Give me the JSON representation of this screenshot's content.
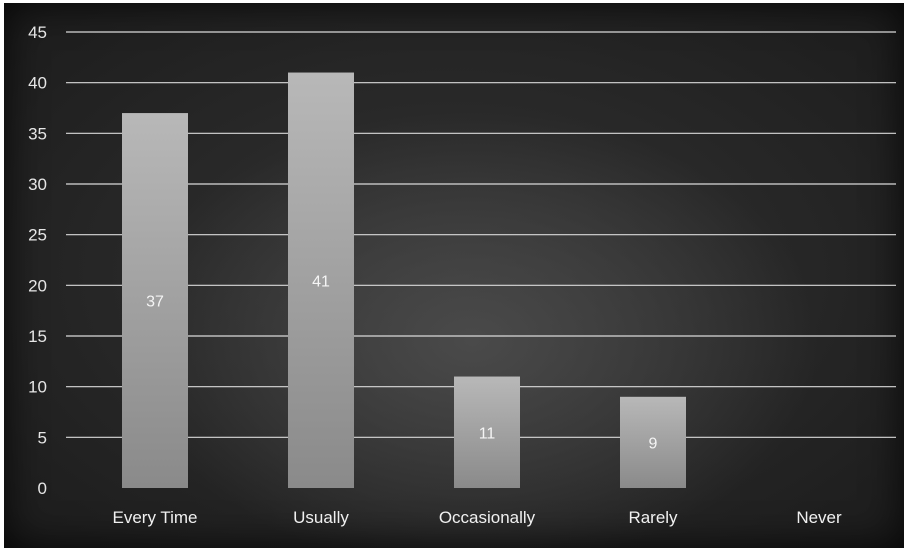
{
  "chart_data": {
    "type": "bar",
    "title": "",
    "xlabel": "",
    "ylabel": "",
    "categories": [
      "Every Time",
      "Usually",
      "Occasionally",
      "Rarely",
      "Never"
    ],
    "values": [
      37,
      41,
      11,
      9,
      0
    ],
    "data_labels": [
      "37",
      "41",
      "11",
      "9",
      ""
    ],
    "ylim": [
      0,
      45
    ],
    "yticks": [
      0,
      5,
      10,
      15,
      20,
      25,
      30,
      35,
      40,
      45
    ],
    "grid": true,
    "legend": "none",
    "colors": {
      "bar_top": "#b8b8b8",
      "bar_bottom": "#8a8a8a",
      "grid": "#d9d9d9",
      "text": "#f0f0f0",
      "background": "#262626"
    }
  }
}
